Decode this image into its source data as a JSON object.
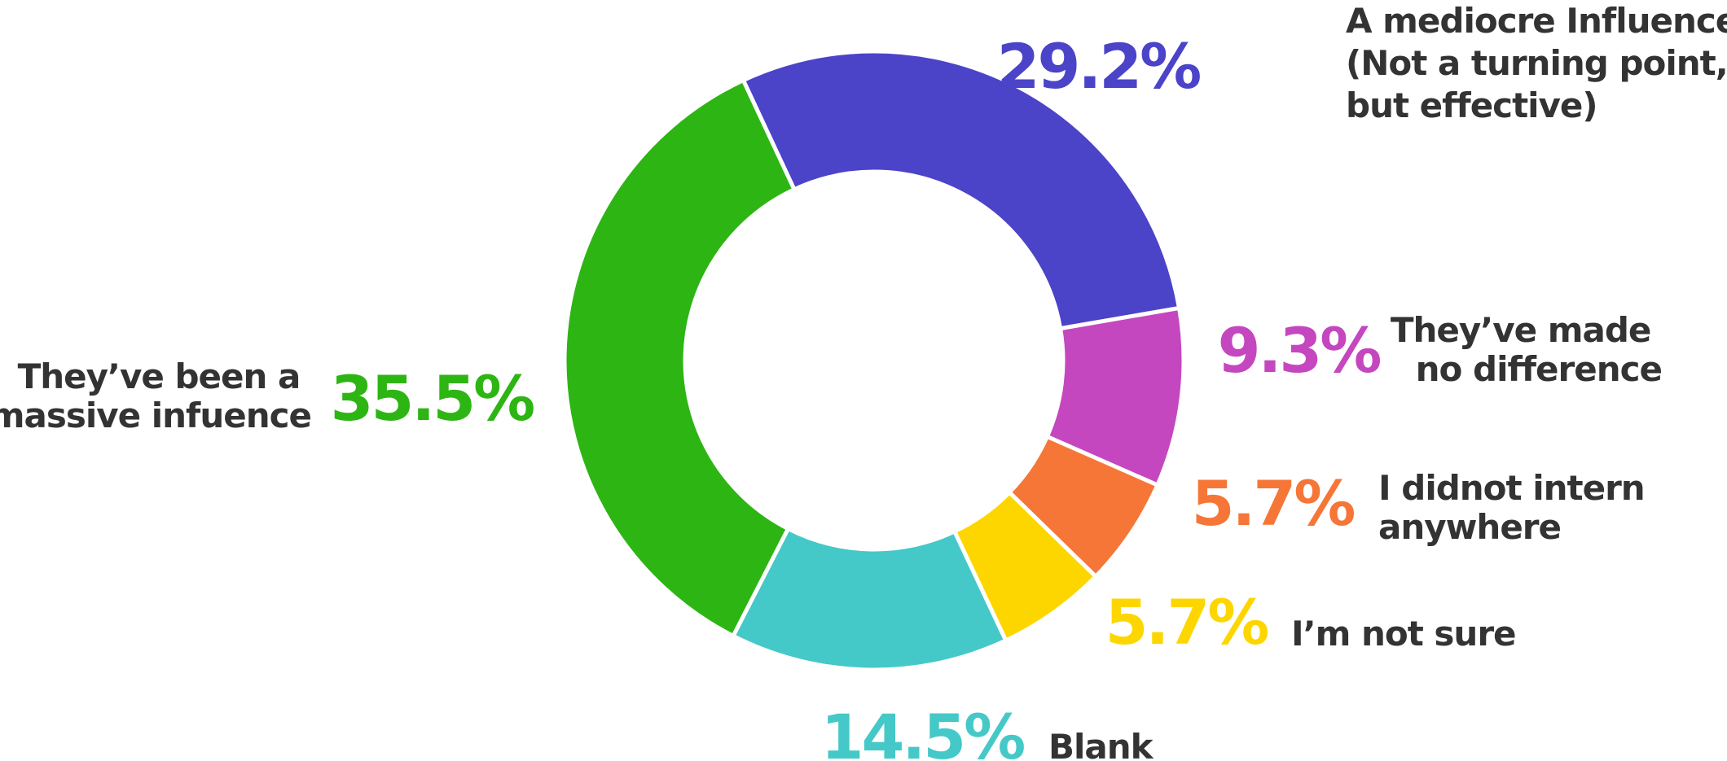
{
  "chart_data": {
    "type": "pie",
    "subtype": "donut",
    "slices": [
      {
        "pct_label": "29.2%",
        "value": 29.2,
        "color": "#4b43c8",
        "label_lines": [
          "A mediocre Influence",
          "(Not a turning point,",
          "but effective)"
        ]
      },
      {
        "pct_label": "9.3%",
        "value": 9.3,
        "color": "#c547bf",
        "label_lines": [
          "They’ve made",
          "no difference"
        ]
      },
      {
        "pct_label": "5.7%",
        "value": 5.7,
        "color": "#f67637",
        "label_lines": [
          "I didnot intern",
          "anywhere"
        ]
      },
      {
        "pct_label": "5.7%",
        "value": 5.7,
        "color": "#fdd600",
        "label_lines": [
          "I’m not sure"
        ]
      },
      {
        "pct_label": "14.5%",
        "value": 14.5,
        "color": "#45c8c8",
        "label_lines": [
          "Blank"
        ]
      },
      {
        "pct_label": "35.5%",
        "value": 35.5,
        "color": "#2db514",
        "label_lines": [
          "They’ve been a",
          "massive infuence"
        ]
      }
    ],
    "legend": "none"
  }
}
